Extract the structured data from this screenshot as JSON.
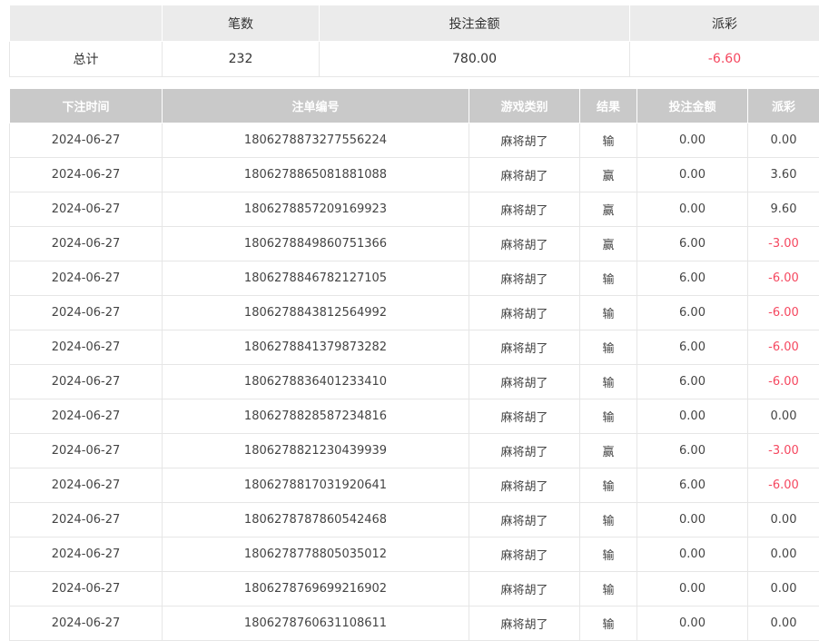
{
  "summary": {
    "headers": [
      "",
      "笔数",
      "投注金额",
      "派彩"
    ],
    "row": {
      "label": "总计",
      "count": "232",
      "bet_amount": "780.00",
      "payout": "-6.60"
    }
  },
  "bets": {
    "headers": [
      "下注时间",
      "注单编号",
      "游戏类别",
      "结果",
      "投注金额",
      "派彩"
    ],
    "rows": [
      [
        "2024-06-27",
        "1806278873277556224",
        "麻将胡了",
        "输",
        "0.00",
        "0.00"
      ],
      [
        "2024-06-27",
        "1806278865081881088",
        "麻将胡了",
        "赢",
        "0.00",
        "3.60"
      ],
      [
        "2024-06-27",
        "1806278857209169923",
        "麻将胡了",
        "赢",
        "0.00",
        "9.60"
      ],
      [
        "2024-06-27",
        "1806278849860751366",
        "麻将胡了",
        "赢",
        "6.00",
        "-3.00"
      ],
      [
        "2024-06-27",
        "1806278846782127105",
        "麻将胡了",
        "输",
        "6.00",
        "-6.00"
      ],
      [
        "2024-06-27",
        "1806278843812564992",
        "麻将胡了",
        "输",
        "6.00",
        "-6.00"
      ],
      [
        "2024-06-27",
        "1806278841379873282",
        "麻将胡了",
        "输",
        "6.00",
        "-6.00"
      ],
      [
        "2024-06-27",
        "1806278836401233410",
        "麻将胡了",
        "输",
        "6.00",
        "-6.00"
      ],
      [
        "2024-06-27",
        "1806278828587234816",
        "麻将胡了",
        "输",
        "0.00",
        "0.00"
      ],
      [
        "2024-06-27",
        "1806278821230439939",
        "麻将胡了",
        "赢",
        "6.00",
        "-3.00"
      ],
      [
        "2024-06-27",
        "1806278817031920641",
        "麻将胡了",
        "输",
        "6.00",
        "-6.00"
      ],
      [
        "2024-06-27",
        "1806278787860542468",
        "麻将胡了",
        "输",
        "0.00",
        "0.00"
      ],
      [
        "2024-06-27",
        "1806278778805035012",
        "麻将胡了",
        "输",
        "0.00",
        "0.00"
      ],
      [
        "2024-06-27",
        "1806278769699216902",
        "麻将胡了",
        "输",
        "0.00",
        "0.00"
      ],
      [
        "2024-06-27",
        "1806278760631108611",
        "麻将胡了",
        "输",
        "0.00",
        "0.00"
      ]
    ]
  },
  "colors": {
    "negative": "#f5475f",
    "header_bg": "#c9c9c9",
    "summary_header_bg": "#ebebeb"
  }
}
